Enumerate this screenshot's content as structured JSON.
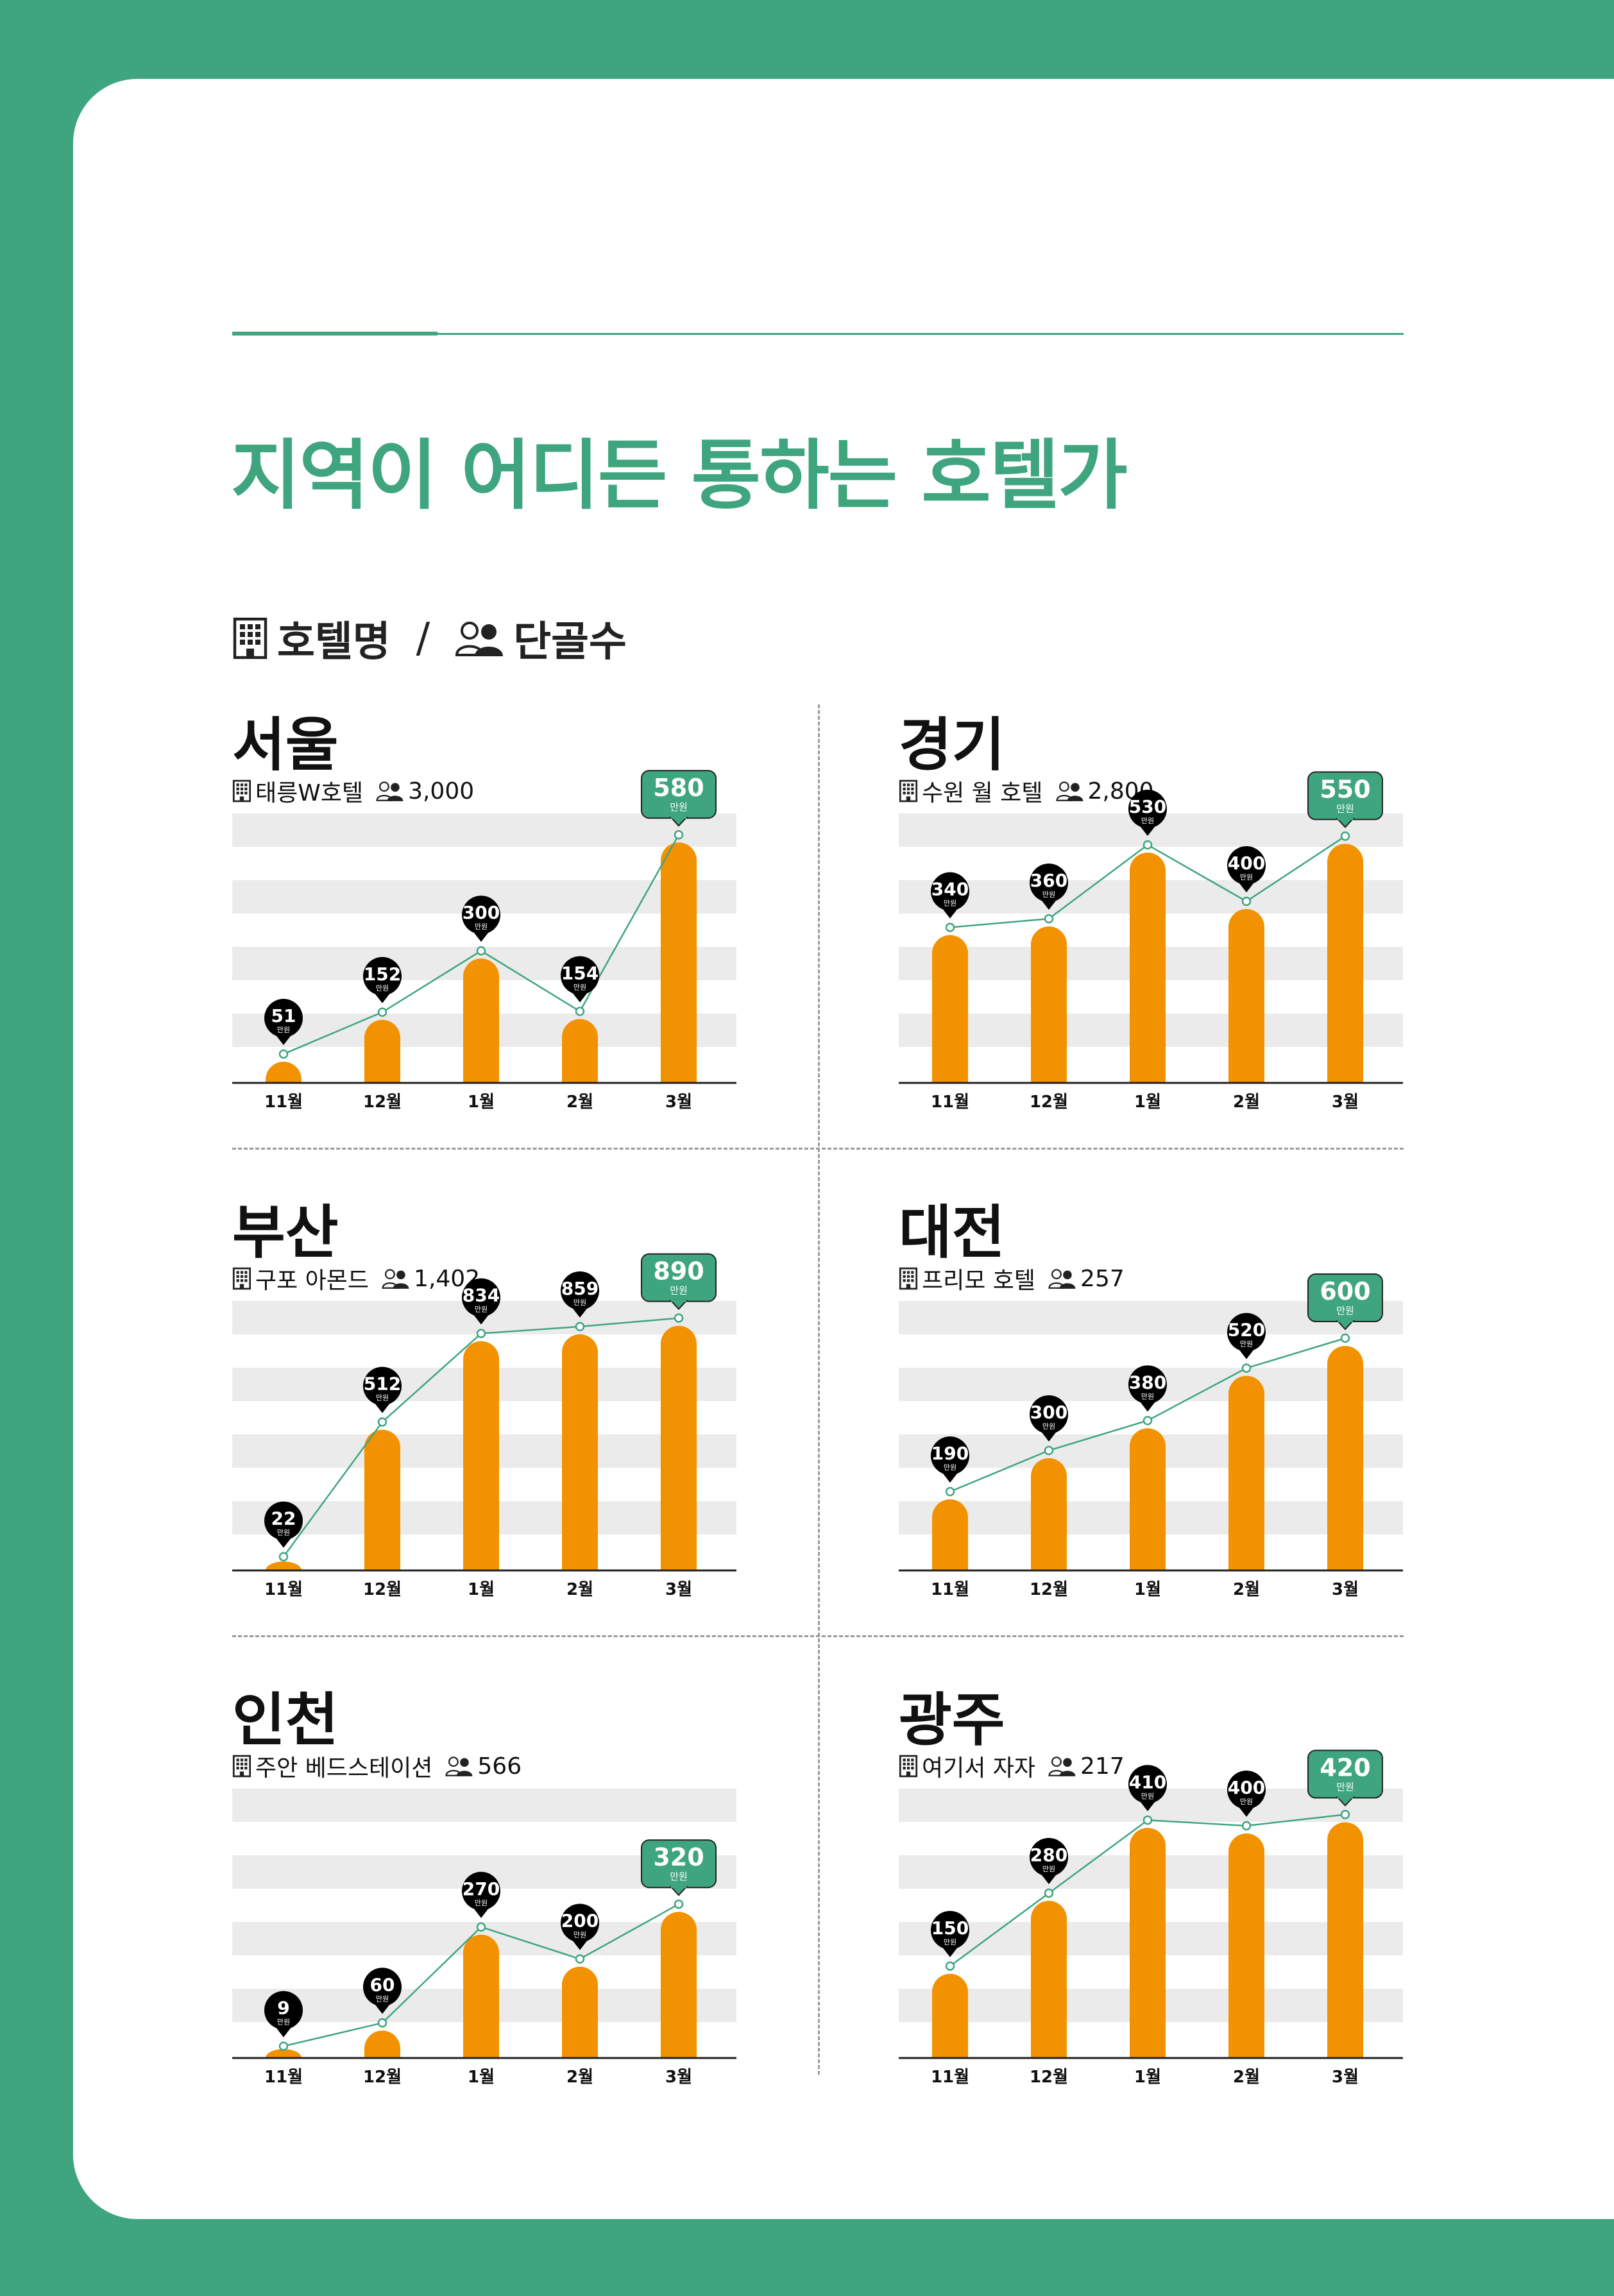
{
  "title": "지역이 어디든 통하는 호텔가",
  "legend": {
    "hotel_label": "호텔명",
    "separator": "/",
    "regulars_label": "단골수",
    "hotel_icon": "building-icon",
    "regulars_icon": "people-icon"
  },
  "colors": {
    "background": "#3fa57e",
    "accent": "#3fa57e",
    "bar": "#f39200",
    "callout": "#000000",
    "highlight_callout": "#3fa57e",
    "stripe": "#ebebeb"
  },
  "unit": "만원",
  "chart_data": [
    {
      "type": "bar",
      "region": "서울",
      "hotel": "태릉W호텔",
      "regulars": "3,000",
      "categories": [
        "11월",
        "12월",
        "1월",
        "2월",
        "3월"
      ],
      "values": [
        51,
        152,
        300,
        154,
        580
      ],
      "labels": [
        "51",
        "152",
        "300",
        "154",
        "580"
      ],
      "unit": "만원",
      "ylim": [
        0,
        650
      ]
    },
    {
      "type": "bar",
      "region": "경기",
      "hotel": "수원 월 호텔",
      "regulars": "2,800",
      "categories": [
        "11월",
        "12월",
        "1월",
        "2월",
        "3월"
      ],
      "values": [
        340,
        360,
        530,
        400,
        550
      ],
      "labels": [
        "340",
        "360",
        "530",
        "400",
        "550"
      ],
      "unit": "만원",
      "ylim": [
        0,
        620
      ]
    },
    {
      "type": "bar",
      "region": "부산",
      "hotel": "구포 아몬드",
      "regulars": "1,402",
      "categories": [
        "11월",
        "12월",
        "1월",
        "2월",
        "3월"
      ],
      "values": [
        22,
        512,
        834,
        859,
        890
      ],
      "labels": [
        "22",
        "512",
        "834",
        "859",
        "890"
      ],
      "unit": "만원",
      "ylim": [
        0,
        980
      ]
    },
    {
      "type": "bar",
      "region": "대전",
      "hotel": "프리모 호텔",
      "regulars": "257",
      "categories": [
        "11월",
        "12월",
        "1월",
        "2월",
        "3월"
      ],
      "values": [
        190,
        300,
        380,
        520,
        600
      ],
      "labels": [
        "190",
        "300",
        "380",
        "520",
        "600"
      ],
      "unit": "만원",
      "ylim": [
        0,
        720
      ]
    },
    {
      "type": "bar",
      "region": "인천",
      "hotel": "주안 베드스테이션",
      "regulars": "566",
      "categories": [
        "11월",
        "12월",
        "1월",
        "2월",
        "3월"
      ],
      "values": [
        9,
        60,
        270,
        200,
        320
      ],
      "labels": [
        "9",
        "60",
        "270",
        "200",
        "320"
      ],
      "unit": "만원",
      "ylim": [
        0,
        590
      ]
    },
    {
      "type": "bar",
      "region": "광주",
      "hotel": "여기서 자자",
      "regulars": "217",
      "categories": [
        "11월",
        "12월",
        "1월",
        "2월",
        "3월"
      ],
      "values": [
        150,
        280,
        410,
        400,
        420
      ],
      "labels": [
        "150",
        "280",
        "410",
        "400",
        "420"
      ],
      "unit": "만원",
      "ylim": [
        0,
        480
      ]
    }
  ]
}
